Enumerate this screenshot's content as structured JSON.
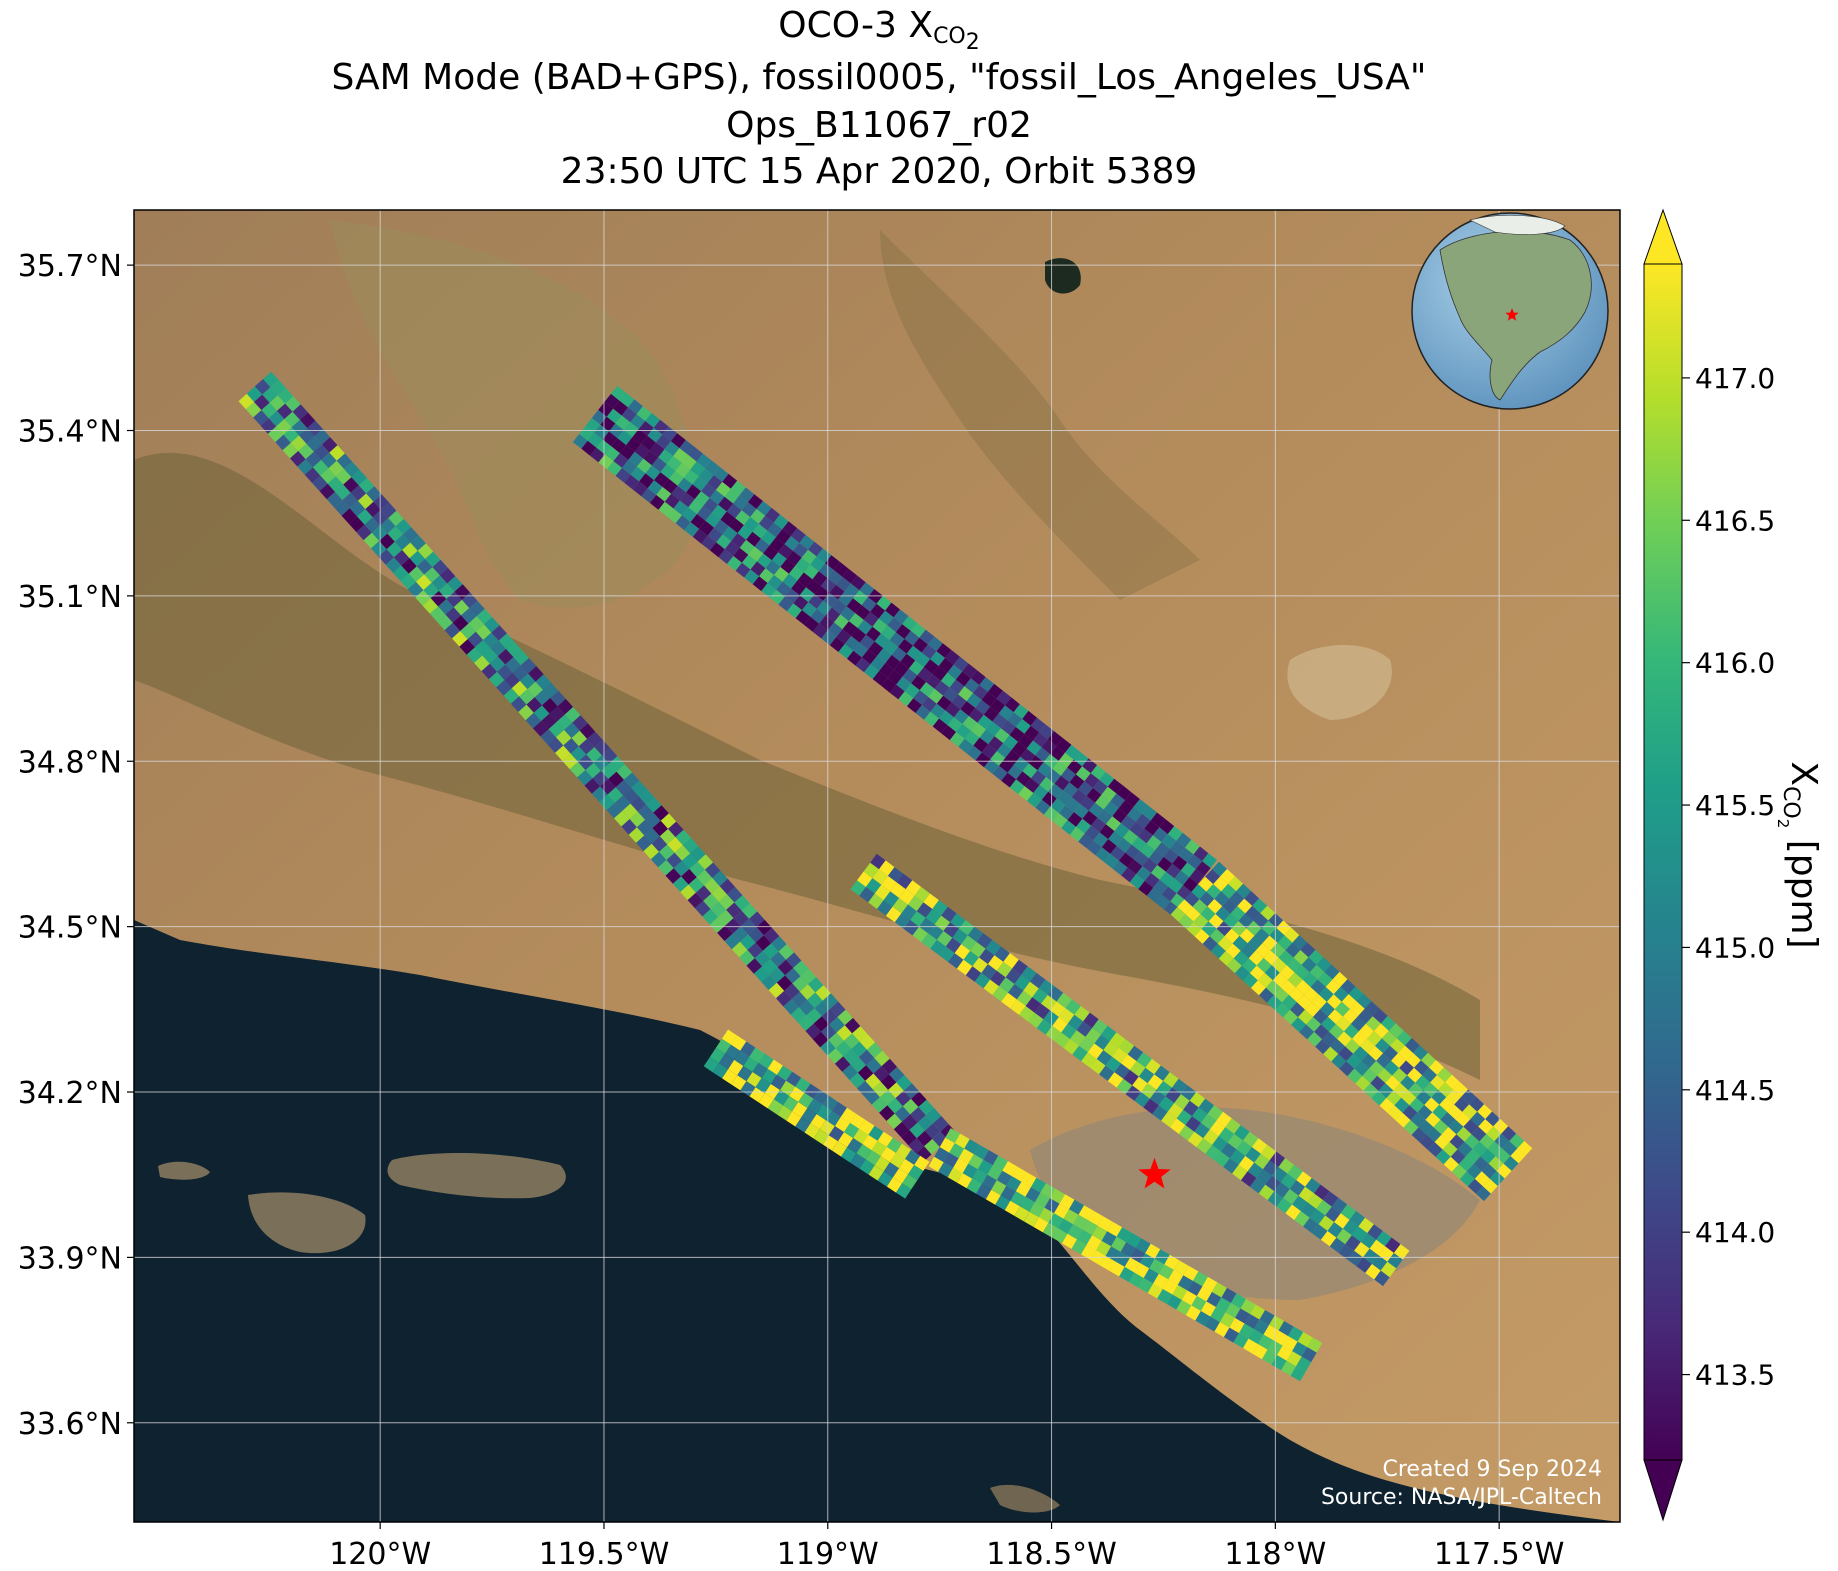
{
  "title": {
    "line1_main": "OCO-3 X",
    "line1_sub": "CO",
    "line1_sub2": "2",
    "line2": "SAM Mode (BAD+GPS), fossil0005, \"fossil_Los_Angeles_USA\"",
    "line3": "Ops_B11067_r02",
    "line4": "23:50 UTC 15 Apr 2020, Orbit 5389"
  },
  "map": {
    "lon_range": [
      -120.55,
      -117.23
    ],
    "lat_range": [
      33.42,
      35.8
    ],
    "lon_ticks": [
      -120.0,
      -119.5,
      -119.0,
      -118.5,
      -118.0,
      -117.5
    ],
    "lon_tick_labels": [
      "120°W",
      "119.5°W",
      "119°W",
      "118.5°W",
      "118°W",
      "117.5°W"
    ],
    "lat_ticks": [
      35.7,
      35.4,
      35.1,
      34.8,
      34.5,
      34.2,
      33.9,
      33.6
    ],
    "lat_tick_labels": [
      "35.7°N",
      "35.4°N",
      "35.1°N",
      "34.8°N",
      "34.5°N",
      "34.2°N",
      "33.9°N",
      "33.6°N"
    ],
    "grid": true,
    "target_marker": {
      "lon": -118.27,
      "lat": 34.05,
      "color": "#ff0000"
    },
    "inset_globe": {
      "position": "top-right",
      "marker_color": "#ff0000"
    },
    "credits": {
      "line1": "Created 9 Sep 2024",
      "line2": "Source: NASA/JPL-Caltech"
    },
    "swaths": [
      {
        "name": "swath-1",
        "start": [
          -120.28,
          35.48
        ],
        "end": [
          -118.75,
          34.1
        ],
        "width_deg": 0.08,
        "bias": 0.0
      },
      {
        "name": "swath-2",
        "start": [
          -118.75,
          34.1
        ],
        "end": [
          -117.92,
          33.71
        ],
        "width_deg": 0.08,
        "bias": 1.5
      },
      {
        "name": "swath-3",
        "start": [
          -119.52,
          35.43
        ],
        "end": [
          -118.18,
          34.57
        ],
        "width_deg": 0.13,
        "bias": -0.6
      },
      {
        "name": "swath-4",
        "start": [
          -118.18,
          34.57
        ],
        "end": [
          -117.48,
          34.05
        ],
        "width_deg": 0.13,
        "bias": 1.2
      },
      {
        "name": "swath-5",
        "start": [
          -118.92,
          34.6
        ],
        "end": [
          -117.73,
          33.88
        ],
        "width_deg": 0.08,
        "bias": 0.8
      },
      {
        "name": "swath-6",
        "start": [
          -119.25,
          34.28
        ],
        "end": [
          -118.8,
          34.04
        ],
        "width_deg": 0.08,
        "bias": 1.4
      }
    ]
  },
  "colorbar": {
    "label_main": "X",
    "label_sub": "CO",
    "label_sub2": "2",
    "label_unit": " [ppm]",
    "vmin": 413.2,
    "vmax": 417.4,
    "ticks": [
      413.5,
      414.0,
      414.5,
      415.0,
      415.5,
      416.0,
      416.5,
      417.0
    ],
    "tick_labels": [
      "413.5",
      "414.0",
      "414.5",
      "415.0",
      "415.5",
      "416.0",
      "416.5",
      "417.0"
    ],
    "colormap": [
      "#440154",
      "#482878",
      "#3e4989",
      "#31688e",
      "#26828e",
      "#1f9e89",
      "#35b779",
      "#6ece58",
      "#b5de2b",
      "#fde725"
    ],
    "extend": "both"
  },
  "colors": {
    "ocean": "#0f2230",
    "land": "#b48c5a",
    "grid": "#d8d8d8",
    "text_light": "#ffffff"
  }
}
